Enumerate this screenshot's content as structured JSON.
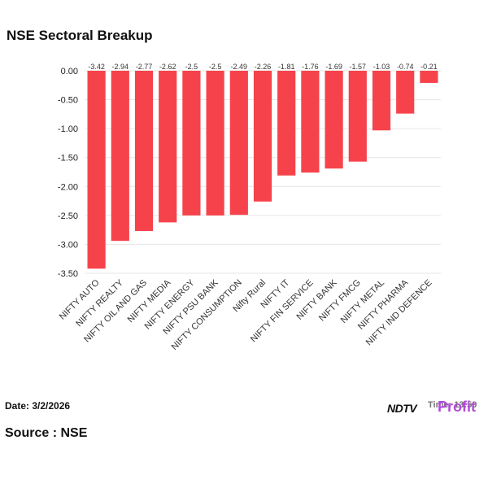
{
  "title": "NSE Sectoral Breakup",
  "date": "Date: 3/2/2026",
  "source": "Source : NSE",
  "brand": {
    "ndtv": "NDTV",
    "profit": "Profit",
    "timestamp": "Time: 13:50"
  },
  "colors": {
    "bar": "#f6434b",
    "grid": "#e6e6e6",
    "axis": "#999999"
  },
  "chart_data": {
    "type": "bar",
    "title": "NSE Sectoral Breakup",
    "xlabel": "",
    "ylabel": "",
    "categories": [
      "NIFTY AUTO",
      "NIFTY REALTY",
      "NIFTY OIL AND GAS",
      "NIFTY MEDIA",
      "NIFTY ENERGY",
      "NIFTY PSU BANK",
      "NIFTY CONSUMPTION",
      "Nifty Rural",
      "NIFTY IT",
      "NIFTY FIN SERVICE",
      "NIFTY BANK",
      "NIFTY FMCG",
      "NIFTY METAL",
      "NIFTY PHARMA",
      "NIFTY IND DEFENCE"
    ],
    "values": [
      -3.42,
      -2.94,
      -2.77,
      -2.62,
      -2.5,
      -2.5,
      -2.49,
      -2.26,
      -1.81,
      -1.76,
      -1.69,
      -1.57,
      -1.03,
      -0.74,
      -0.21
    ],
    "ylim": [
      -3.5,
      0
    ],
    "yticks": [
      "0.00",
      "-0.50",
      "-1.00",
      "-1.50",
      "-2.00",
      "-2.50",
      "-3.00",
      "-3.50"
    ],
    "ytick_values": [
      0,
      -0.5,
      -1.0,
      -1.5,
      -2.0,
      -2.5,
      -3.0,
      -3.5
    ],
    "grid": true,
    "legend": "none"
  }
}
